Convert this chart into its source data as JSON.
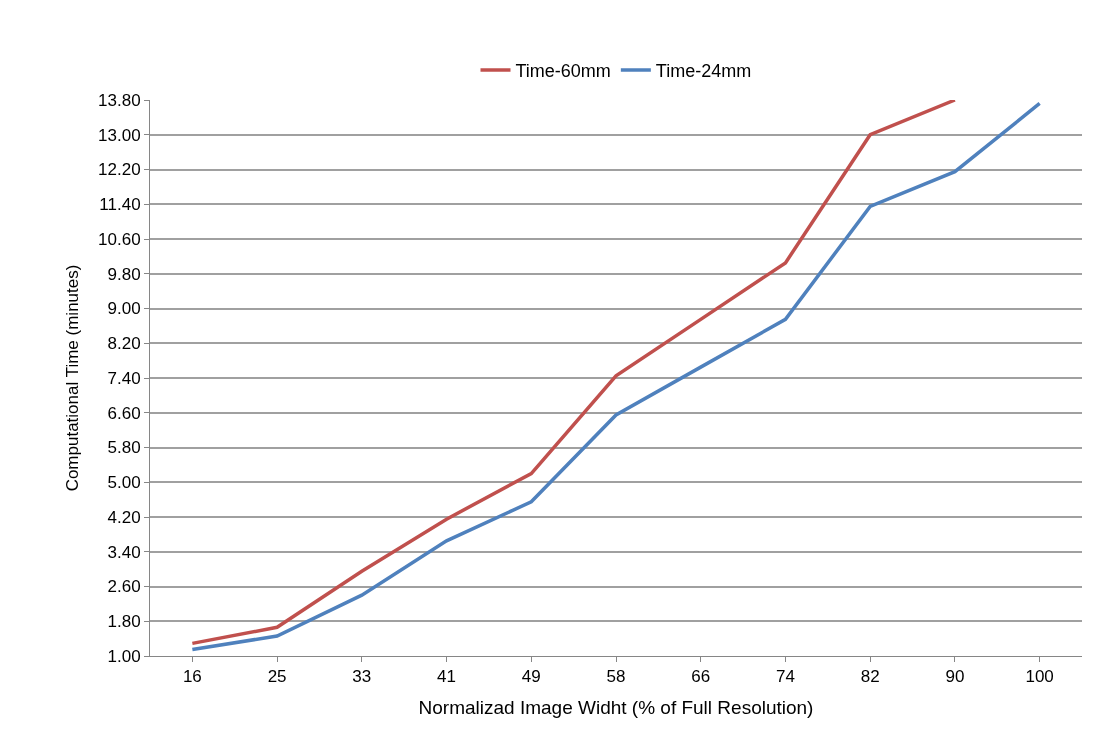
{
  "chart_data": {
    "type": "line",
    "xlabel": "Normalizad Image Widht (% of Full Resolution)",
    "ylabel": "Computational Time (minutes)",
    "categories": [
      "16",
      "25",
      "33",
      "41",
      "49",
      "58",
      "66",
      "74",
      "82",
      "90",
      "100"
    ],
    "series": [
      {
        "name": "Time-60mm",
        "color": "#c0504d",
        "values": [
          1.29,
          1.66,
          2.95,
          4.15,
          5.2,
          7.45,
          8.75,
          10.05,
          13.0,
          13.8,
          null
        ]
      },
      {
        "name": "Time-24mm",
        "color": "#4f81bd",
        "values": [
          1.15,
          1.46,
          2.4,
          3.65,
          4.55,
          6.55,
          7.65,
          8.75,
          11.35,
          12.15,
          13.72
        ]
      }
    ],
    "ylim": [
      1.0,
      13.8
    ],
    "yticks": [
      {
        "value": 1.0,
        "label": "1.00"
      },
      {
        "value": 1.8,
        "label": "1.80"
      },
      {
        "value": 2.6,
        "label": "2.60"
      },
      {
        "value": 3.4,
        "label": "3.40"
      },
      {
        "value": 4.2,
        "label": "4.20"
      },
      {
        "value": 5.0,
        "label": "5.00"
      },
      {
        "value": 5.8,
        "label": "5.80"
      },
      {
        "value": 6.6,
        "label": "6.60"
      },
      {
        "value": 7.4,
        "label": "7.40"
      },
      {
        "value": 8.2,
        "label": "8.20"
      },
      {
        "value": 9.0,
        "label": "9.00"
      },
      {
        "value": 9.8,
        "label": "9.80"
      },
      {
        "value": 10.6,
        "label": "10.60"
      },
      {
        "value": 11.4,
        "label": "11.40"
      },
      {
        "value": 12.2,
        "label": "12.20"
      },
      {
        "value": 13.0,
        "label": "13.00"
      },
      {
        "value": 13.8,
        "label": "13.80"
      }
    ],
    "grid": "y",
    "legend": "top",
    "marker": "none",
    "line_style": "solid"
  }
}
